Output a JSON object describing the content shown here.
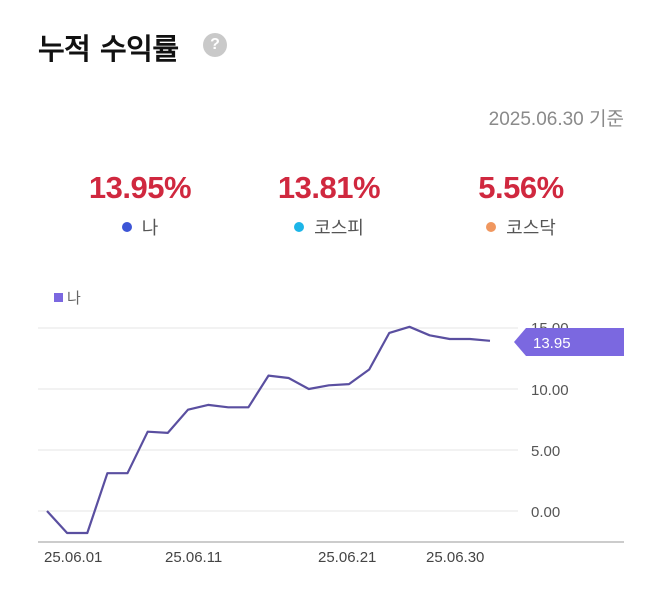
{
  "header": {
    "title": "누적 수익률",
    "help_icon": "question-circle-icon",
    "help_symbol": "?",
    "as_of": "2025.06.30 기준"
  },
  "summary": [
    {
      "value": "13.95%",
      "label": "나",
      "dot_color": "#3d55d6"
    },
    {
      "value": "13.81%",
      "label": "코스피",
      "dot_color": "#1cb5e8"
    },
    {
      "value": "5.56%",
      "label": "코스닥",
      "dot_color": "#f0975f"
    }
  ],
  "colors": {
    "value_red": "#d0283f",
    "line": "#5a4fa0",
    "badge": "#7b68e0",
    "grid": "#eeeeee",
    "axis": "#bbbbbb"
  },
  "chart": {
    "legend_label": "나",
    "current_value_badge": "13.95",
    "y_ticks": [
      "15.00",
      "10.00",
      "5.00",
      "0.00"
    ],
    "x_ticks": [
      "25.06.01",
      "25.06.11",
      "25.06.21",
      "25.06.30"
    ]
  },
  "chart_data": {
    "type": "line",
    "title": "누적 수익률",
    "xlabel": "",
    "ylabel": "",
    "ylim": [
      -2.5,
      16
    ],
    "grid": true,
    "legend_position": "top-left",
    "x": [
      "25.06.01",
      "25.06.02",
      "25.06.03",
      "25.06.04",
      "25.06.08",
      "25.06.09",
      "25.06.10",
      "25.06.11",
      "25.06.12",
      "25.06.13",
      "25.06.15",
      "25.06.16",
      "25.06.17",
      "25.06.18",
      "25.06.20",
      "25.06.22",
      "25.06.23",
      "25.06.24",
      "25.06.25",
      "25.06.26",
      "25.06.27",
      "25.06.29",
      "25.06.30"
    ],
    "series": [
      {
        "name": "나",
        "color": "#5a4fa0",
        "values": [
          0.0,
          -1.8,
          -1.8,
          3.1,
          3.1,
          6.5,
          6.4,
          8.3,
          8.7,
          8.5,
          8.5,
          11.1,
          10.9,
          10.0,
          10.3,
          10.4,
          11.6,
          14.6,
          15.1,
          14.4,
          14.1,
          14.1,
          13.95
        ]
      }
    ],
    "last_value_label": "13.95",
    "tick_labels_x": [
      "25.06.01",
      "25.06.11",
      "25.06.21",
      "25.06.30"
    ],
    "tick_labels_y": [
      "0.00",
      "5.00",
      "10.00",
      "15.00"
    ]
  }
}
